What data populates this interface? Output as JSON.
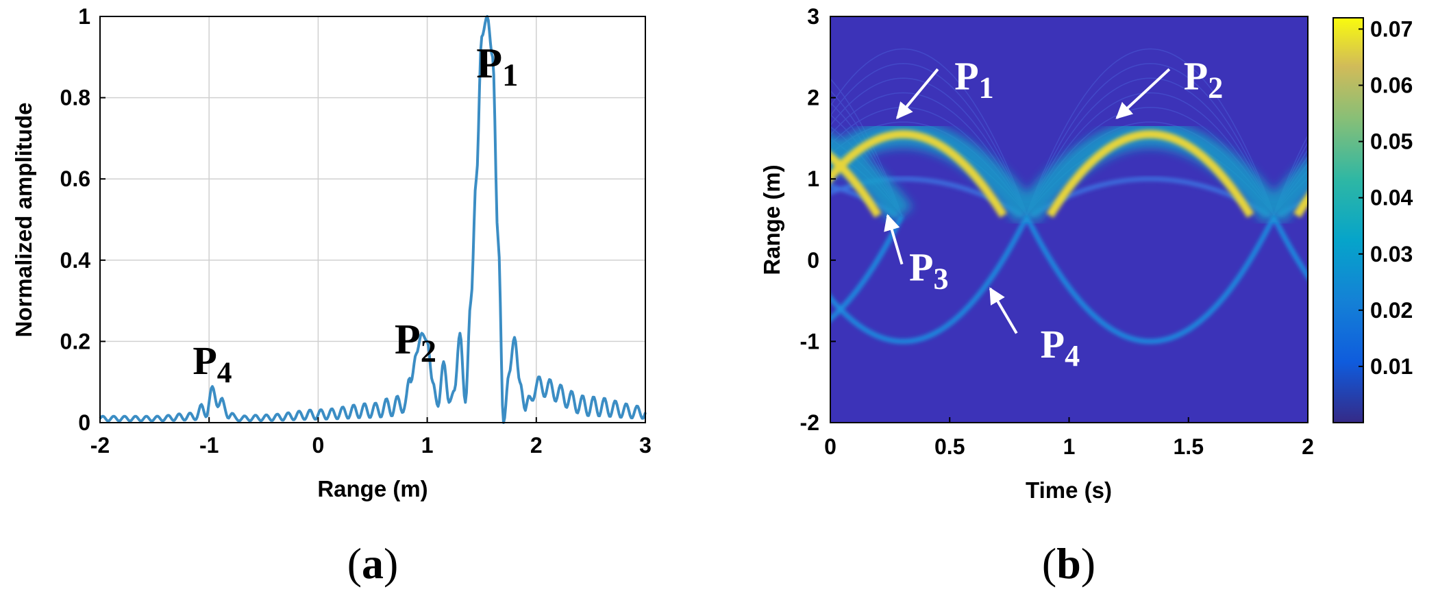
{
  "panels": {
    "a": {
      "open": "(",
      "letter": "a",
      "close": ")"
    },
    "b": {
      "open": "(",
      "letter": "b",
      "close": ")"
    }
  },
  "chart_data": [
    {
      "type": "line",
      "xlabel": "Range (m)",
      "ylabel": "Normalized amplitude",
      "xlim": [
        -2,
        3
      ],
      "ylim": [
        0,
        1
      ],
      "xticks": [
        "-2",
        "-1",
        "0",
        "1",
        "2",
        "3"
      ],
      "yticks": [
        "0",
        "0.2",
        "0.4",
        "0.6",
        "0.8",
        "1"
      ],
      "grid": true,
      "series": [
        {
          "color": "#3b8dc4",
          "x": [
            -2,
            -1.5,
            -1.15,
            -1.05,
            -0.95,
            -0.85,
            -0.75,
            -0.5,
            0,
            0.5,
            0.7,
            0.8,
            0.85,
            0.9,
            0.95,
            1.0,
            1.05,
            1.1,
            1.15,
            1.2,
            1.25,
            1.3,
            1.35,
            1.4,
            1.45,
            1.5,
            1.55,
            1.6,
            1.65,
            1.7,
            1.75,
            1.8,
            1.85,
            1.9,
            2.0,
            2.5,
            3.0
          ],
          "y": [
            0.01,
            0.01,
            0.015,
            0.03,
            0.07,
            0.03,
            0.01,
            0.012,
            0.02,
            0.03,
            0.04,
            0.05,
            0.1,
            0.17,
            0.22,
            0.2,
            0.1,
            0.04,
            0.15,
            0.05,
            0.08,
            0.22,
            0.05,
            0.3,
            0.6,
            0.95,
            1.0,
            0.9,
            0.45,
            0.0,
            0.12,
            0.21,
            0.1,
            0.03,
            0.09,
            0.04,
            0.025
          ]
        }
      ],
      "annotations": [
        {
          "main": "P",
          "sub": "1",
          "x": 1.45,
          "y": 0.85
        },
        {
          "main": "P",
          "sub": "2",
          "x": 0.7,
          "y": 0.17
        },
        {
          "main": "P",
          "sub": "4",
          "x": -1.15,
          "y": 0.12
        }
      ]
    },
    {
      "type": "heatmap",
      "xlabel": "Time (s)",
      "ylabel": "Range (m)",
      "xlim": [
        0,
        2
      ],
      "ylim": [
        -2,
        3
      ],
      "xticks": [
        "0",
        "0.5",
        "1",
        "1.5",
        "2"
      ],
      "yticks": [
        "-2",
        "-1",
        "0",
        "1",
        "2",
        "3"
      ],
      "colormap": "parula",
      "background_color": "#3c33b8",
      "colorbar": {
        "ticks": [
          "0.01",
          "0.02",
          "0.03",
          "0.04",
          "0.05",
          "0.06",
          "0.07"
        ],
        "range": [
          0,
          0.072
        ]
      },
      "annotations": [
        {
          "main": "P",
          "sub": "1",
          "x": 0.52,
          "y": 2.1
        },
        {
          "main": "P",
          "sub": "2",
          "x": 1.48,
          "y": 2.1
        },
        {
          "main": "P",
          "sub": "3",
          "x": 0.33,
          "y": -0.25
        },
        {
          "main": "P",
          "sub": "4",
          "x": 0.88,
          "y": -1.2
        }
      ]
    }
  ]
}
